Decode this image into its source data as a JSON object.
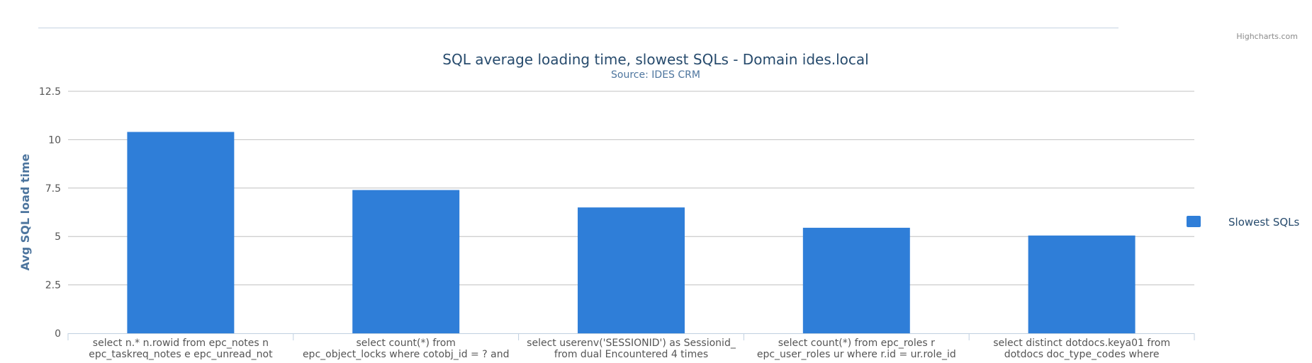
{
  "credits": "Highcharts.com",
  "colors": {
    "bar": "#2f7ed8",
    "title": "#274b6d",
    "subtitle": "#4d759e",
    "axis_title": "#4d759e",
    "grid": "#c0c0c0",
    "axis_line": "#c0d0e0",
    "label": "#555555"
  },
  "chart_data": {
    "type": "bar",
    "title": "SQL average loading time, slowest SQLs - Domain ides.local",
    "subtitle": "Source: IDES CRM",
    "xlabel": "",
    "ylabel": "Avg SQL load time",
    "ylim": [
      0,
      12.5
    ],
    "yticks": [
      "0",
      "2.5",
      "5",
      "7.5",
      "10",
      "12.5"
    ],
    "grid": true,
    "legend_position": "right",
    "categories": [
      [
        "select n.* n.rowid from epc_notes n",
        "epc_taskreq_notes e epc_unread_not"
      ],
      [
        "select count(*) from",
        "epc_object_locks where cotobj_id = ? and"
      ],
      [
        "select userenv('SESSIONID') as Sessionid_",
        "from dual Encountered 4 times"
      ],
      [
        "select count(*) from epc_roles r",
        "epc_user_roles ur where r.id = ur.role_id"
      ],
      [
        "select distinct dotdocs.keya01 from",
        "dotdocs doc_type_codes where"
      ]
    ],
    "series": [
      {
        "name": "Slowest SQLs",
        "values": [
          10.4,
          7.4,
          6.5,
          5.45,
          5.05
        ]
      }
    ]
  }
}
